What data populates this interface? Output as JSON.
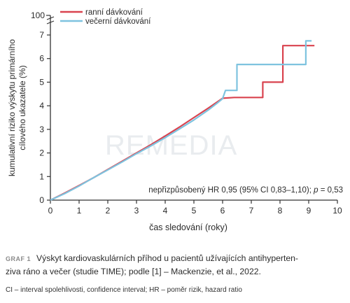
{
  "watermark": "REMEDIA",
  "chart_data": {
    "type": "line",
    "xlabel": "čas sledování (roky)",
    "ylabel_line1": "kumulativní riziko výskytu primárního",
    "ylabel_line2": "cílového ukazatele (%)",
    "xlim": [
      0,
      10
    ],
    "ylim": [
      0,
      7
    ],
    "x_ticks": [
      0,
      1,
      2,
      3,
      4,
      5,
      6,
      7,
      8,
      9,
      10
    ],
    "y_ticks": [
      0,
      1,
      2,
      3,
      4,
      5,
      6,
      7
    ],
    "y_top_label": "100",
    "legend_position": "top-left",
    "annotation_prefix": "nepřizpůsobený HR 0,95 (95% CI 0,83–1,10); ",
    "annotation_p": "p",
    "annotation_suffix": " = 0,53",
    "series": [
      {
        "name": "ranní dávkování",
        "color": "#d9434f",
        "points": [
          [
            0,
            0
          ],
          [
            0.5,
            0.3
          ],
          [
            1,
            0.62
          ],
          [
            1.5,
            0.95
          ],
          [
            2,
            1.3
          ],
          [
            2.5,
            1.65
          ],
          [
            3,
            2.0
          ],
          [
            3.5,
            2.35
          ],
          [
            4,
            2.72
          ],
          [
            4.5,
            3.1
          ],
          [
            5,
            3.5
          ],
          [
            5.5,
            3.9
          ],
          [
            6,
            4.32
          ],
          [
            6.4,
            4.35
          ],
          [
            7.4,
            4.35
          ],
          [
            7.4,
            5.0
          ],
          [
            8.1,
            5.0
          ],
          [
            8.1,
            6.55
          ],
          [
            9.2,
            6.55
          ]
        ]
      },
      {
        "name": "večerní dávkování",
        "color": "#7ec3df",
        "points": [
          [
            0,
            0
          ],
          [
            0.5,
            0.28
          ],
          [
            1,
            0.6
          ],
          [
            1.5,
            0.95
          ],
          [
            2,
            1.28
          ],
          [
            2.5,
            1.62
          ],
          [
            3,
            1.97
          ],
          [
            3.5,
            2.3
          ],
          [
            4,
            2.65
          ],
          [
            4.5,
            3.02
          ],
          [
            5,
            3.4
          ],
          [
            5.5,
            3.82
          ],
          [
            5.8,
            4.1
          ],
          [
            6,
            4.3
          ],
          [
            6.1,
            4.65
          ],
          [
            6.5,
            4.65
          ],
          [
            6.5,
            5.75
          ],
          [
            8.9,
            5.75
          ],
          [
            8.9,
            6.75
          ],
          [
            9.1,
            6.75
          ]
        ]
      }
    ]
  },
  "caption": {
    "graf_label": "GRAF 1",
    "text_line1": "Výskyt kardiovaskulárních příhod u pacientů užívajících antihyperten-",
    "text_line2": "ziva ráno a večer (studie TIME); podle [1] – Mackenzie, et al., 2022."
  },
  "note": "CI – interval spolehlivosti, confidence interval; HR – poměr rizik, hazard ratio"
}
